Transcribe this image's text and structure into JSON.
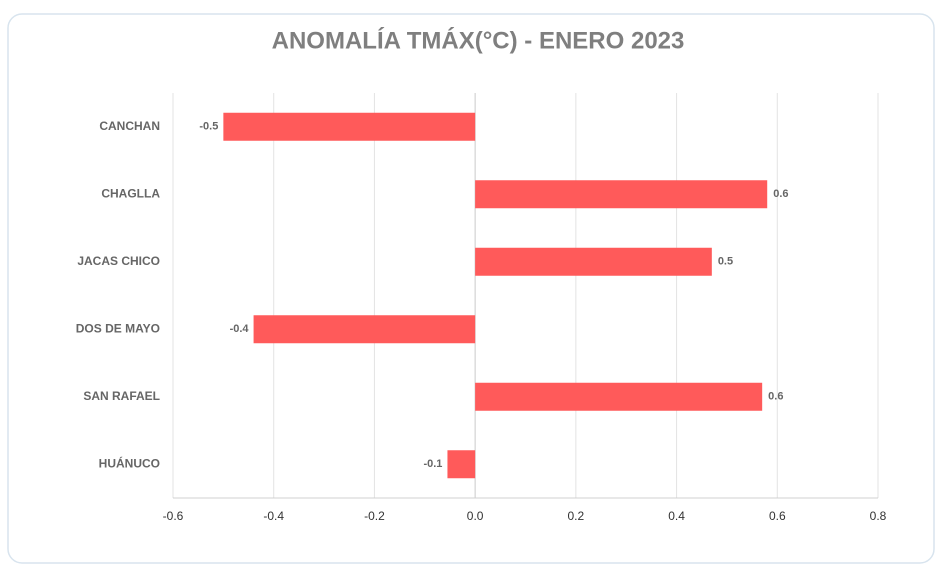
{
  "chart_data": {
    "type": "hbar",
    "title": "ANOMALÍA TMÁX(°C) -  ENERO 2023",
    "categories": [
      "CANCHAN",
      "CHAGLLA",
      "JACAS CHICO",
      "DOS DE MAYO",
      "SAN RAFAEL",
      "HUÁNUCO"
    ],
    "values": [
      -0.5,
      0.58,
      0.47,
      -0.44,
      0.57,
      -0.055
    ],
    "value_labels": [
      "-0.5",
      "0.6",
      "0.5",
      "-0.4",
      "0.6",
      "-0.1"
    ],
    "color": "#ff5a5a",
    "xlim": [
      -0.6,
      0.8
    ],
    "xticks": [
      -0.6,
      -0.4,
      -0.2,
      {
        "value": 0,
        "label": "0.0"
      },
      0.2,
      0.4,
      0.6,
      0.8
    ],
    "grid": true
  }
}
